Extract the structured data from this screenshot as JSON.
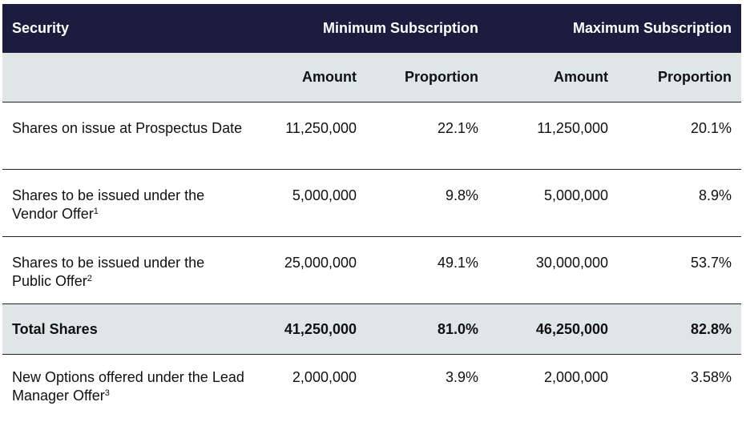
{
  "header": {
    "security": "Security",
    "min_group": "Minimum Subscription",
    "max_group": "Maximum Subscription"
  },
  "subheader": {
    "min_amount": "Amount",
    "min_proportion": "Proportion",
    "max_amount": "Amount",
    "max_proportion": "Proportion"
  },
  "rows": [
    {
      "label": "Shares on issue at Prospectus Date",
      "note": "",
      "min_amount": "11,250,000",
      "min_proportion": "22.1%",
      "max_amount": "11,250,000",
      "max_proportion": "20.1%"
    },
    {
      "label": "Shares to be issued under the Vendor Offer",
      "note": "1",
      "min_amount": "5,000,000",
      "min_proportion": "9.8%",
      "max_amount": "5,000,000",
      "max_proportion": "8.9%"
    },
    {
      "label": "Shares to be issued under the Public Offer",
      "note": "2",
      "min_amount": "25,000,000",
      "min_proportion": "49.1%",
      "max_amount": "30,000,000",
      "max_proportion": "53.7%"
    },
    {
      "label": "Total Shares",
      "note": "",
      "min_amount": "41,250,000",
      "min_proportion": "81.0%",
      "max_amount": "46,250,000",
      "max_proportion": "82.8%"
    },
    {
      "label": "New Options offered under the Lead Manager Offer",
      "note": "3",
      "min_amount": "2,000,000",
      "min_proportion": "3.9%",
      "max_amount": "2,000,000",
      "max_proportion": "3.58%"
    }
  ]
}
